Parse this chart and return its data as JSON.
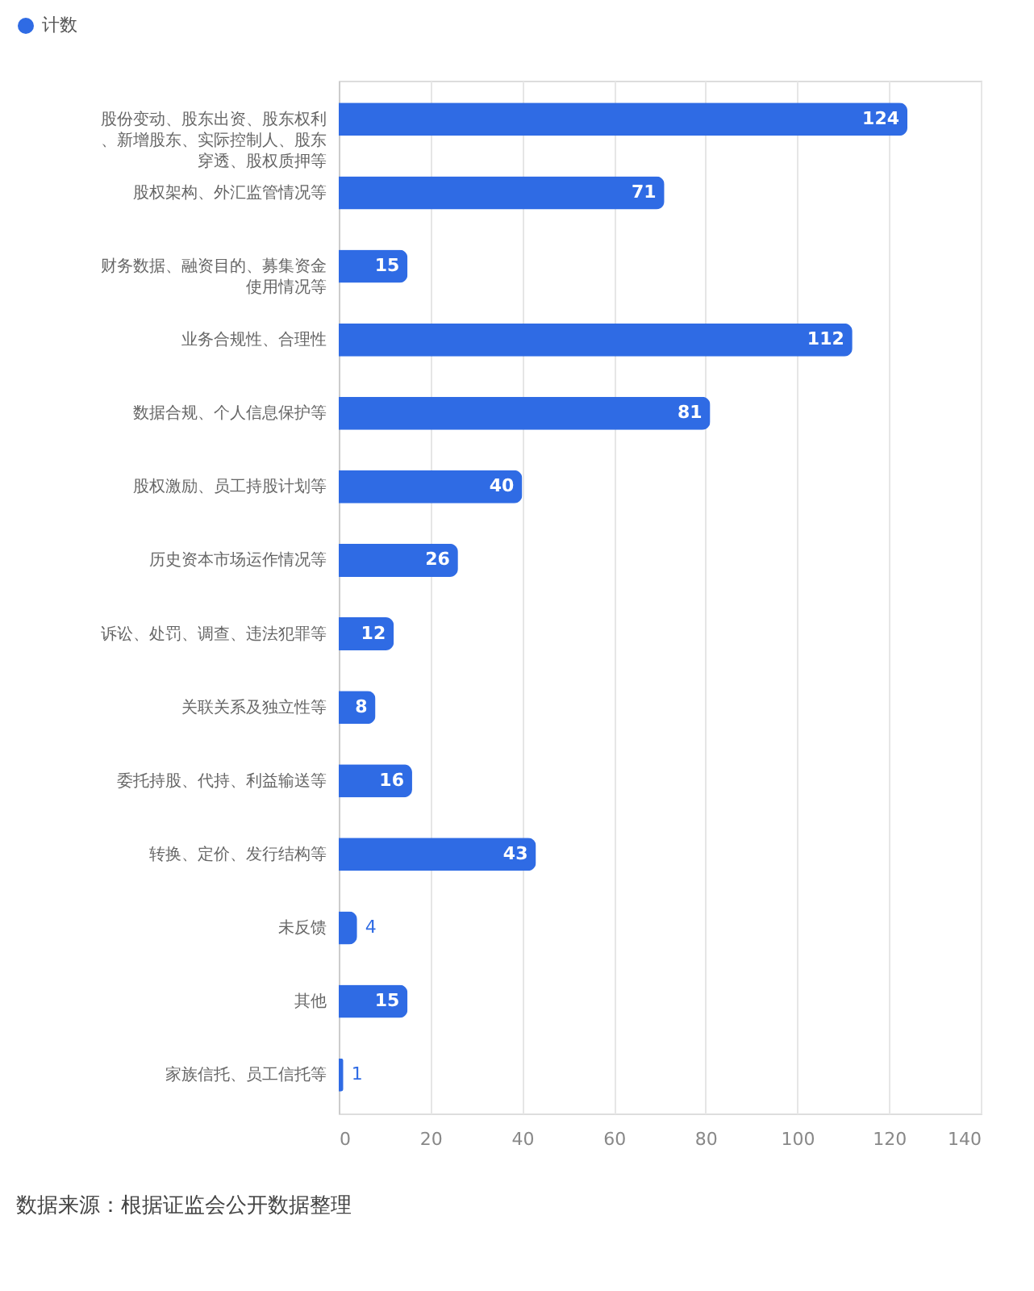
{
  "chart_data": {
    "type": "bar",
    "orientation": "horizontal",
    "categories": [
      "股份变动、股东出资、股东权利、新增股东、实际控制人、股东穿透、股权质押等",
      "股权架构、外汇监管情况等",
      "财务数据、融资目的、募集资金使用情况等",
      "业务合规性、合理性",
      "数据合规、个人信息保护等",
      "股权激励、员工持股计划等",
      "历史资本市场运作情况等",
      "诉讼、处罚、调查、违法犯罪等",
      "关联关系及独立性等",
      "委托持股、代持、利益输送等",
      "转换、定价、发行结构等",
      "未反馈",
      "其他",
      "家族信托、员工信托等"
    ],
    "series": [
      {
        "name": "计数",
        "color": "#2f6be4",
        "values": [
          124,
          71,
          15,
          112,
          81,
          40,
          26,
          12,
          8,
          16,
          43,
          4,
          15,
          1
        ]
      }
    ],
    "xlim": [
      0,
      140
    ],
    "xticks": [
      0,
      20,
      40,
      60,
      80,
      100,
      120,
      140
    ],
    "grid": "x",
    "legend": "top left",
    "data_labels": true,
    "annotations": [
      "数据来源：根据证监会公开数据整理"
    ]
  }
}
